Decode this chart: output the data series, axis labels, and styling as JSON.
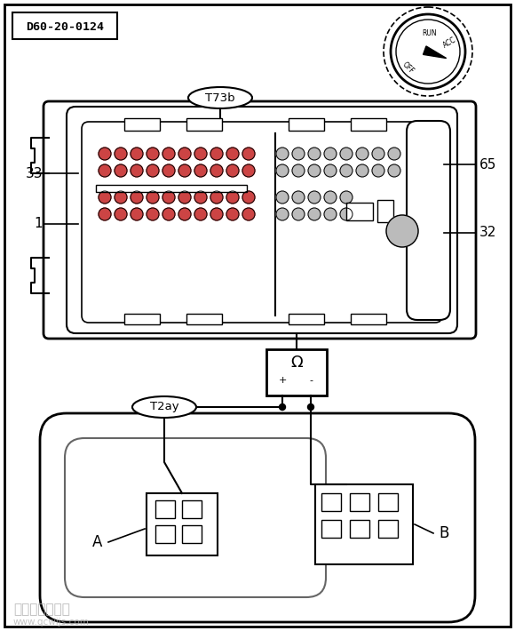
{
  "title_box": "D60-20-0124",
  "label_T73b": "T73b",
  "label_T2ay": "T2ay",
  "label_33": "33",
  "label_65": "65",
  "label_1": "1",
  "label_32": "32",
  "label_A": "A",
  "label_B": "B",
  "watermark_line1": "汽车维修技术网",
  "watermark_line2": "www.qcwijs.com",
  "bg_color": "#ffffff",
  "pin_color_dark": "#cc4444",
  "pin_color_light": "#bbbbbb",
  "omega_symbol": "Ω",
  "dial_labels": [
    "OFF",
    "RUN",
    "ACC"
  ]
}
